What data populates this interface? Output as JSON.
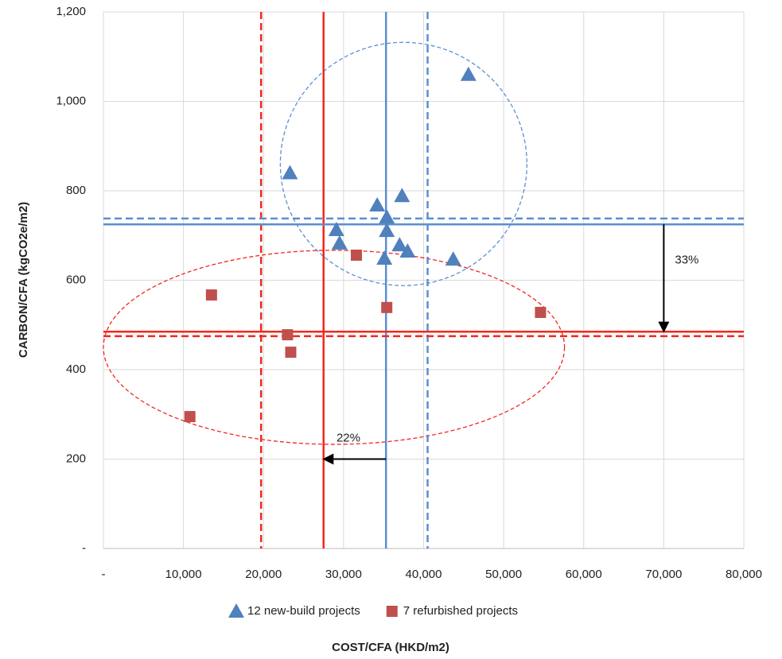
{
  "chart_data": {
    "type": "scatter",
    "xlabel": "COST/CFA (HKD/m2)",
    "ylabel": "CARBON/CFA (kgCO2e/m2)",
    "xlim": [
      0,
      80000
    ],
    "xticks": [
      {
        "value": 0,
        "label": "-"
      },
      {
        "value": 10000,
        "label": "10,000"
      },
      {
        "value": 20000,
        "label": "20,000"
      },
      {
        "value": 30000,
        "label": "30,000"
      },
      {
        "value": 40000,
        "label": "40,000"
      },
      {
        "value": 50000,
        "label": "50,000"
      },
      {
        "value": 60000,
        "label": "60,000"
      },
      {
        "value": 70000,
        "label": "70,000"
      },
      {
        "value": 80000,
        "label": "80,000"
      }
    ],
    "ylim": [
      0,
      1200
    ],
    "yticks": [
      {
        "value": 0,
        "label": "-"
      },
      200,
      400,
      600,
      800,
      {
        "value": 1000,
        "label": "1,000"
      },
      {
        "value": 1200,
        "label": "1,200"
      }
    ],
    "grid": true,
    "legend": "bottom",
    "series": [
      {
        "name": "12 new-build projects",
        "color": "#4f81bd",
        "marker": "triangle",
        "x": [
          45600,
          23300,
          34200,
          37300,
          35400,
          29100,
          35400,
          29500,
          37000,
          38000,
          35100,
          43700
        ],
        "values": [
          1060,
          840,
          768,
          789,
          741,
          713,
          711,
          683,
          679,
          665,
          649,
          647
        ]
      },
      {
        "name": "7 refurbished projects",
        "color": "#c0504d",
        "marker": "square",
        "x": [
          13500,
          31600,
          35400,
          54600,
          23000,
          23400,
          10800
        ],
        "values": [
          567,
          656,
          539,
          528,
          478,
          439,
          295
        ]
      }
    ],
    "reference_lines": {
      "vertical": [
        {
          "value": 35300,
          "color": "#5b8fd0",
          "dashed": false
        },
        {
          "value": 40500,
          "color": "#5b8fd0",
          "dashed": true
        },
        {
          "value": 27500,
          "color": "#f0281e",
          "dashed": false
        },
        {
          "value": 19700,
          "color": "#f0281e",
          "dashed": true
        }
      ],
      "horizontal": [
        {
          "value": 725,
          "color": "#5b8fd0",
          "dashed": false
        },
        {
          "value": 738,
          "color": "#5b8fd0",
          "dashed": true
        },
        {
          "value": 485,
          "color": "#f0281e",
          "dashed": false
        },
        {
          "value": 475,
          "color": "#f0281e",
          "dashed": true
        }
      ]
    },
    "ellipses": [
      {
        "cx": 37500,
        "cy": 860,
        "rx": 15400,
        "ry": 272,
        "color": "#5b8fd0"
      },
      {
        "cx": 28800,
        "cy": 450,
        "rx": 28800,
        "ry": 217,
        "color": "#f0281e"
      }
    ],
    "annotations": [
      {
        "text": "33%",
        "x": [
          70000,
          70000
        ],
        "y": [
          725,
          485
        ]
      },
      {
        "text": "22%",
        "x": [
          35300,
          27500
        ],
        "y": [
          200,
          200
        ]
      }
    ]
  }
}
